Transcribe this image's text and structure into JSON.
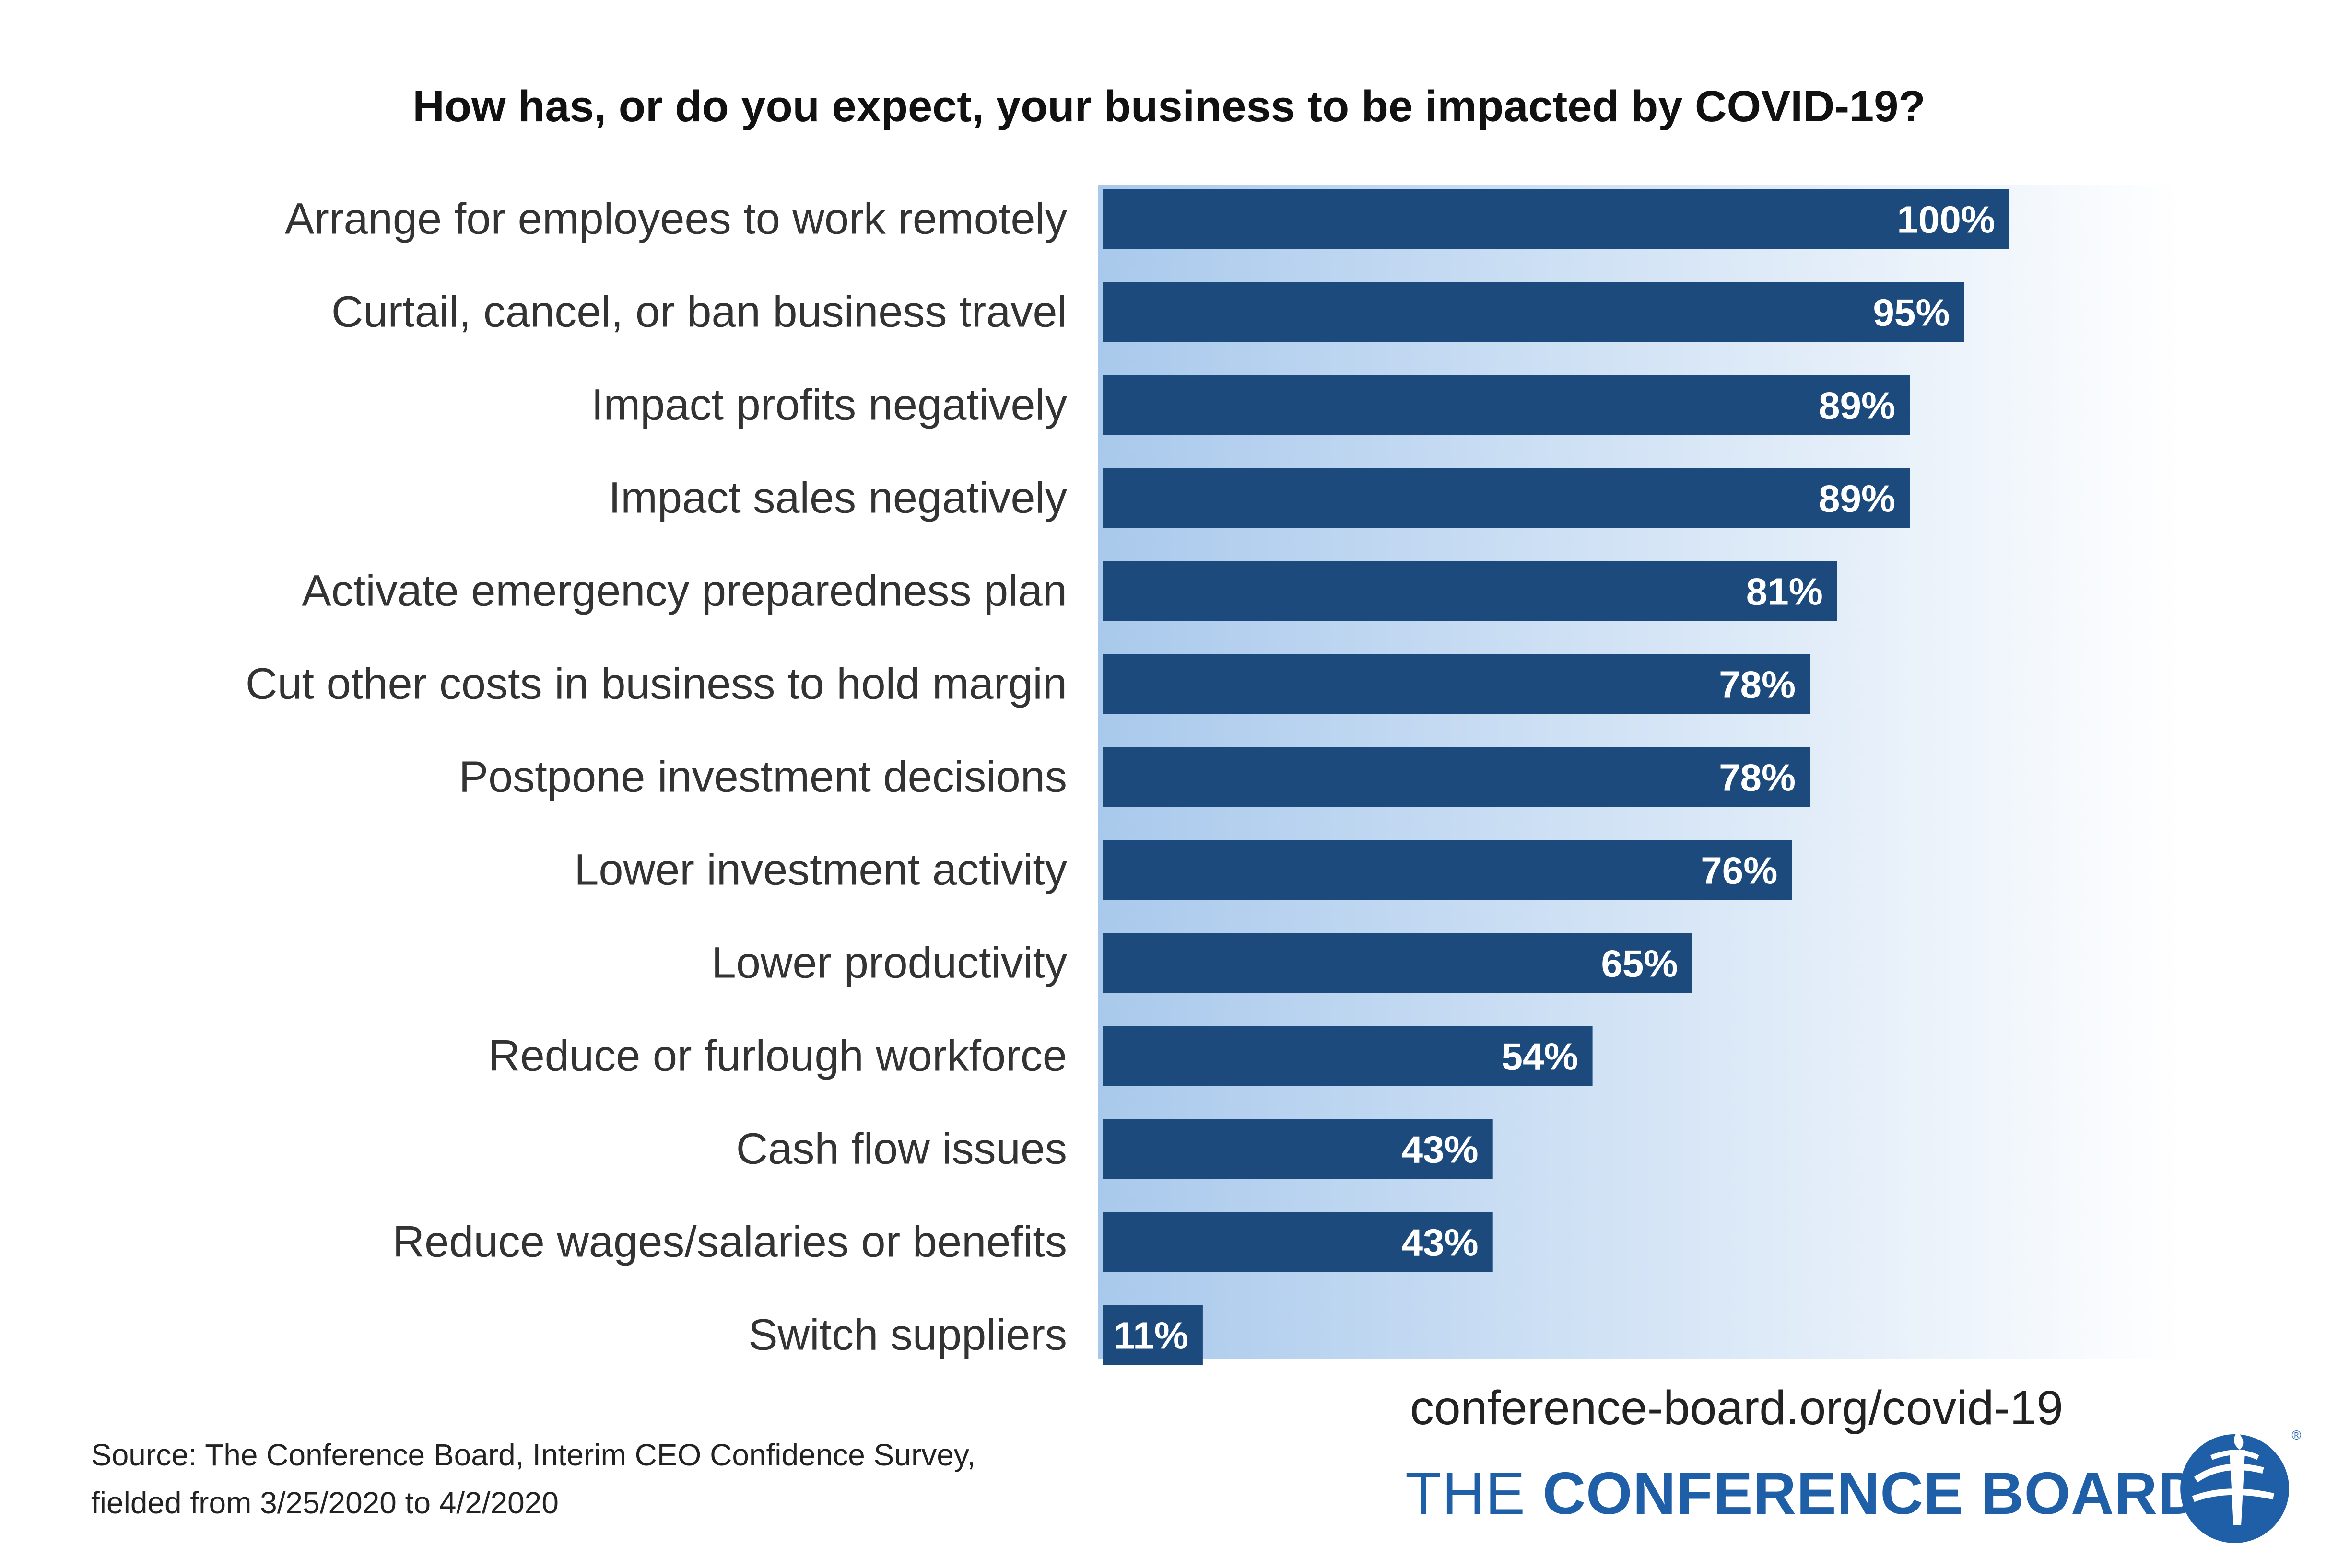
{
  "chart_data": {
    "type": "bar",
    "orientation": "horizontal",
    "title": "How has, or do you expect, your business to be impacted by COVID-19?",
    "xlabel": "",
    "ylabel": "",
    "xlim": [
      0,
      100
    ],
    "grid": false,
    "categories": [
      "Arrange for employees to work remotely",
      "Curtail, cancel, or ban business travel",
      "Impact profits negatively",
      "Impact sales negatively",
      "Activate emergency preparedness plan",
      "Cut other costs in business to hold margin",
      "Postpone investment decisions",
      "Lower investment activity",
      "Lower productivity",
      "Reduce or furlough workforce",
      "Cash flow issues",
      "Reduce wages/salaries or benefits",
      "Switch suppliers"
    ],
    "values": [
      100,
      95,
      89,
      89,
      81,
      78,
      78,
      76,
      65,
      54,
      43,
      43,
      11
    ],
    "data_labels": [
      "100%",
      "95%",
      "89%",
      "89%",
      "81%",
      "78%",
      "78%",
      "76%",
      "65%",
      "54%",
      "43%",
      "43%",
      "11%"
    ]
  },
  "colors": {
    "bar": "#1d4a7c",
    "background_gradient_start": "#a9c9ec",
    "background_gradient_end": "#ffffff",
    "brand": "#1f5fa8"
  },
  "footer": {
    "source_line1": "Source: The Conference Board, Interim CEO Confidence Survey,",
    "source_line2": "fielded from 3/25/2020 to 4/2/2020",
    "url": "conference-board.org/covid-19"
  },
  "brand": {
    "name_light": "THE",
    "name_bold": "CONFERENCE BOARD",
    "logo_icon": "torch-globe-icon",
    "registered_mark": "®"
  }
}
